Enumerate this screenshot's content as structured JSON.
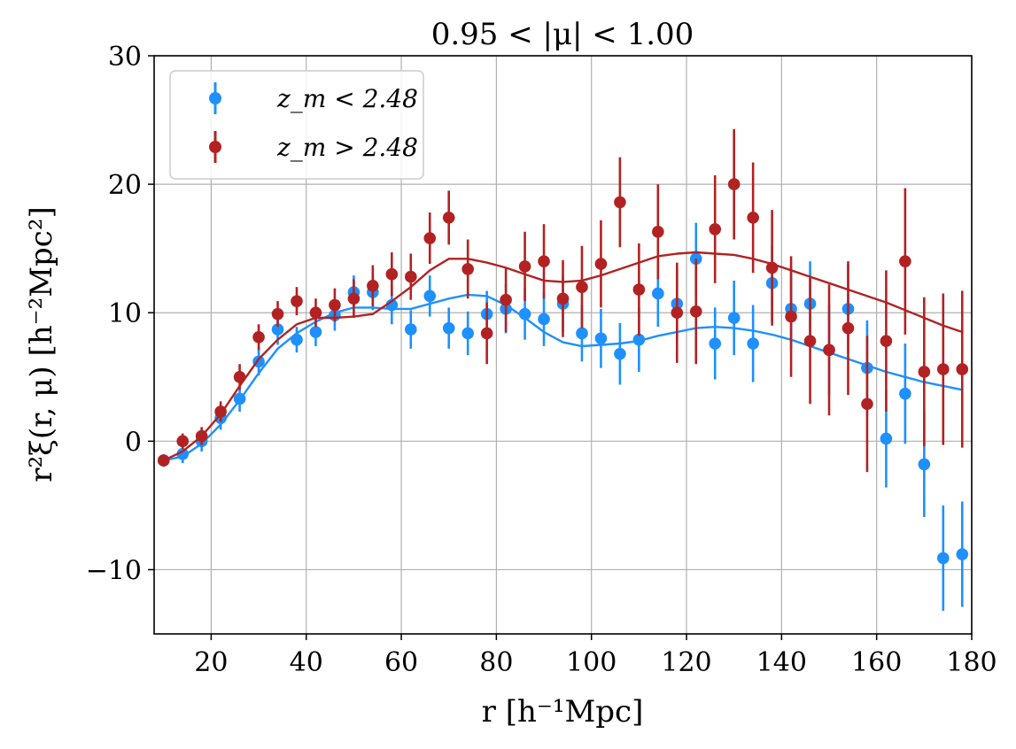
{
  "chart_data": {
    "type": "scatter",
    "title": "0.95 < |μ| < 1.00",
    "xlabel": "r [h⁻¹Mpc]",
    "ylabel": "r²ξ(r, μ) [h⁻²Mpc²]",
    "xlim": [
      8,
      180
    ],
    "ylim": [
      -15,
      30
    ],
    "xticks": [
      20,
      40,
      60,
      80,
      100,
      120,
      140,
      160,
      180
    ],
    "yticks": [
      -10,
      0,
      10,
      20,
      30
    ],
    "ytick_labels": [
      "−10",
      "0",
      "10",
      "20",
      "30"
    ],
    "grid": true,
    "legend_position": "top-left",
    "series": [
      {
        "name": "z_m < 2.48",
        "color": "#1e90ff",
        "x": [
          10,
          14,
          18,
          22,
          26,
          30,
          34,
          38,
          42,
          46,
          50,
          54,
          58,
          62,
          66,
          70,
          74,
          78,
          82,
          86,
          90,
          94,
          98,
          102,
          106,
          110,
          114,
          118,
          122,
          126,
          130,
          134,
          138,
          142,
          146,
          150,
          154,
          158,
          162,
          166,
          170,
          174,
          178
        ],
        "y": [
          -1.5,
          -1.0,
          0.0,
          1.8,
          3.3,
          6.2,
          8.7,
          7.9,
          8.5,
          9.8,
          11.6,
          11.6,
          10.6,
          8.7,
          11.3,
          8.8,
          8.4,
          9.9,
          10.3,
          9.9,
          9.5,
          10.7,
          8.4,
          8.0,
          6.8,
          7.9,
          11.5,
          10.7,
          14.2,
          7.6,
          9.6,
          7.6,
          12.3,
          10.3,
          10.7,
          7.1,
          10.3,
          5.7,
          0.2,
          3.7,
          -1.8,
          -9.1,
          -8.8
        ],
        "yerr": [
          0.5,
          0.7,
          0.8,
          0.9,
          1.0,
          1.1,
          1.2,
          1.0,
          1.1,
          1.2,
          1.3,
          1.4,
          1.5,
          1.5,
          1.6,
          1.6,
          1.7,
          1.8,
          1.9,
          2.0,
          2.1,
          2.2,
          2.2,
          2.3,
          2.4,
          2.5,
          2.6,
          2.7,
          2.8,
          2.8,
          2.9,
          3.0,
          3.0,
          3.2,
          3.3,
          3.5,
          3.5,
          3.7,
          3.8,
          3.9,
          4.1,
          4.1,
          4.1
        ],
        "model_x": [
          10,
          14,
          18,
          22,
          26,
          30,
          34,
          38,
          42,
          46,
          50,
          54,
          58,
          62,
          66,
          70,
          74,
          78,
          82,
          86,
          90,
          94,
          98,
          102,
          106,
          110,
          114,
          118,
          122,
          126,
          130,
          134,
          138,
          142,
          146,
          150,
          154,
          158,
          162,
          166,
          170,
          174,
          178
        ],
        "model_y": [
          -1.5,
          -1.2,
          -0.2,
          1.3,
          3.2,
          5.3,
          7.2,
          8.4,
          9.3,
          10.0,
          10.4,
          10.4,
          10.3,
          10.3,
          10.7,
          11.1,
          11.4,
          11.3,
          10.6,
          9.6,
          8.5,
          7.7,
          7.4,
          7.5,
          7.6,
          7.8,
          8.2,
          8.5,
          8.8,
          8.9,
          8.8,
          8.6,
          8.3,
          7.9,
          7.4,
          6.9,
          6.4,
          5.9,
          5.4,
          5.0,
          4.6,
          4.3,
          4.0
        ]
      },
      {
        "name": "z_m > 2.48",
        "color": "#b22222",
        "x": [
          10,
          14,
          18,
          22,
          26,
          30,
          34,
          38,
          42,
          46,
          50,
          54,
          58,
          62,
          66,
          70,
          74,
          78,
          82,
          86,
          90,
          94,
          98,
          102,
          106,
          110,
          114,
          118,
          122,
          126,
          130,
          134,
          138,
          142,
          146,
          150,
          154,
          158,
          162,
          166,
          170,
          174,
          178
        ],
        "y": [
          -1.5,
          0.0,
          0.4,
          2.3,
          5.0,
          8.1,
          9.9,
          10.9,
          10.0,
          10.6,
          11.1,
          12.1,
          13.0,
          12.8,
          15.8,
          17.4,
          13.4,
          8.4,
          11.0,
          13.6,
          14.0,
          11.1,
          12.0,
          13.8,
          18.6,
          11.8,
          16.3,
          10.0,
          10.1,
          16.5,
          20.0,
          17.4,
          13.5,
          9.7,
          7.8,
          7.1,
          8.8,
          2.9,
          7.8,
          14.0,
          5.4,
          5.6,
          5.6
        ],
        "yerr": [
          0.4,
          0.6,
          0.7,
          0.8,
          1.0,
          1.0,
          1.0,
          1.1,
          1.1,
          1.3,
          1.5,
          1.6,
          1.7,
          1.8,
          2.0,
          2.1,
          2.3,
          2.4,
          2.5,
          2.7,
          2.9,
          3.0,
          3.2,
          3.4,
          3.5,
          3.6,
          3.7,
          3.9,
          4.1,
          4.2,
          4.3,
          4.3,
          4.5,
          4.7,
          4.9,
          5.1,
          5.2,
          5.3,
          5.5,
          5.7,
          5.8,
          5.9,
          6.1
        ],
        "model_x": [
          10,
          14,
          18,
          22,
          26,
          30,
          34,
          38,
          42,
          46,
          50,
          54,
          58,
          62,
          66,
          70,
          74,
          78,
          82,
          86,
          90,
          94,
          98,
          102,
          106,
          110,
          114,
          118,
          122,
          126,
          130,
          134,
          138,
          142,
          146,
          150,
          154,
          158,
          162,
          166,
          170,
          174,
          178
        ],
        "model_y": [
          -1.5,
          -0.8,
          0.4,
          2.1,
          4.3,
          6.4,
          7.9,
          9.1,
          9.6,
          9.6,
          9.7,
          9.9,
          10.9,
          12.0,
          13.3,
          14.2,
          14.2,
          13.9,
          13.5,
          13.0,
          12.5,
          12.4,
          12.5,
          12.9,
          13.4,
          13.9,
          14.4,
          14.6,
          14.7,
          14.6,
          14.5,
          14.2,
          13.8,
          13.3,
          12.8,
          12.3,
          11.8,
          11.3,
          10.8,
          10.2,
          9.6,
          9.0,
          8.5
        ]
      }
    ]
  }
}
